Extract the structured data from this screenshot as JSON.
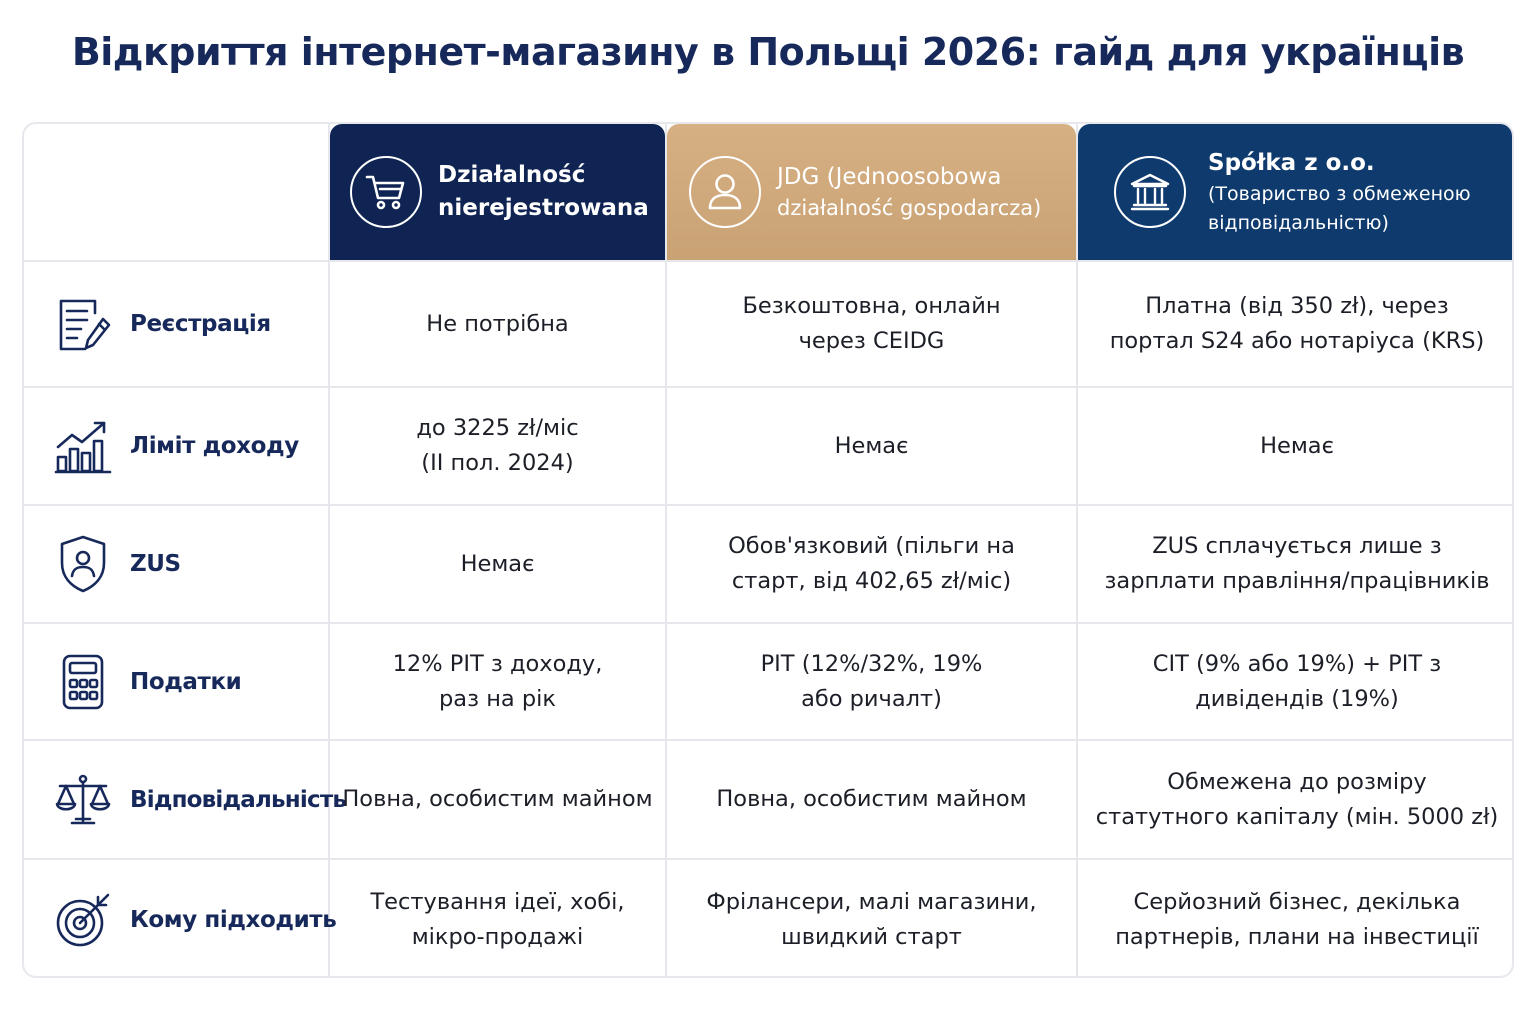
{
  "title": "Відкриття інтернет-магазину в Польщі 2026: гайд для українців",
  "columns": [
    {
      "icon": "shopping-cart-icon",
      "title_lines": [
        "Działalność",
        "nierejestrowana"
      ],
      "subtitle_lines": []
    },
    {
      "icon": "person-icon",
      "title_lines": [
        "JDG (Jednoosobowa"
      ],
      "subtitle_lines": [
        "działalność gospodarcza)"
      ]
    },
    {
      "icon": "bank-building-icon",
      "title_lines": [
        "Spółka z o.o."
      ],
      "subtitle_lines": [
        "(Товариство з обмеженою",
        "відповідальністю)"
      ]
    }
  ],
  "header_colors": {
    "col1": "#0f2452",
    "col2": "#c9a274",
    "col3": "#0f3a6e"
  },
  "rows": [
    {
      "icon": "document-pen-icon",
      "label": "Реєстрація",
      "values": [
        [
          "Не потрібна"
        ],
        [
          "Безкоштовна, онлайн",
          "через CEIDG"
        ],
        [
          "Платна (від 350 zł), через",
          "портал S24 або нотаріуса (KRS)"
        ]
      ]
    },
    {
      "icon": "growth-chart-icon",
      "label": "Ліміт доходу",
      "values": [
        [
          "до 3225 zł/міс",
          "(II пол. 2024)"
        ],
        [
          "Немає"
        ],
        [
          "Немає"
        ]
      ]
    },
    {
      "icon": "shield-person-icon",
      "label": "ZUS",
      "values": [
        [
          "Немає"
        ],
        [
          "Обов'язковий (пільги на",
          "старт, від 402,65 zł/міс)"
        ],
        [
          "ZUS сплачується лише з",
          "зарплати правління/працівників"
        ]
      ]
    },
    {
      "icon": "calculator-icon",
      "label": "Податки",
      "values": [
        [
          "12% PIT з доходу,",
          "раз на рік"
        ],
        [
          "PIT (12%/32%, 19%",
          "або ричалт)"
        ],
        [
          "CIT (9% або 19%) + PIT з",
          "дивідендів (19%)"
        ]
      ]
    },
    {
      "icon": "scales-icon",
      "label": "Відповідальність",
      "values": [
        [
          "Повна, особистим майном"
        ],
        [
          "Повна, особистим майном"
        ],
        [
          "Обмежена до розміру",
          "статутного капіталу (мін. 5000 zł)"
        ]
      ]
    },
    {
      "icon": "target-arrow-icon",
      "label": "Кому підходить",
      "values": [
        [
          "Тестування ідеї, хобі,",
          "мікро-продажі"
        ],
        [
          "Фрілансери, малі магазини,",
          "швидкий старт"
        ],
        [
          "Серйозний бізнес, декілька",
          "партнерів, плани на інвестиції"
        ]
      ]
    }
  ]
}
